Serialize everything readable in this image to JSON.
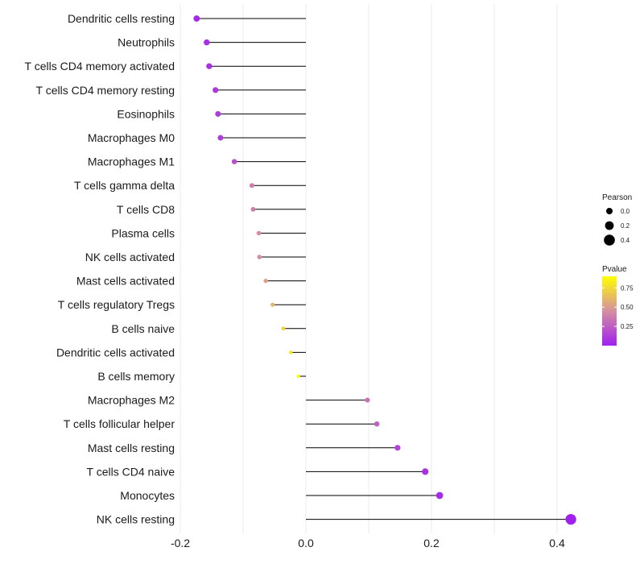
{
  "chart_data": {
    "type": "lollipop",
    "title": "",
    "xlabel": "",
    "ylabel": "",
    "xlim": [
      -0.2,
      0.42
    ],
    "x_ticks": [
      {
        "value": -0.2,
        "label": "-0.2"
      },
      {
        "value": 0.0,
        "label": "0.0"
      },
      {
        "value": 0.2,
        "label": "0.2"
      },
      {
        "value": 0.4,
        "label": "0.4"
      }
    ],
    "grid": true,
    "categories": [
      "Dendritic cells resting",
      "Neutrophils",
      "T cells CD4 memory activated",
      "T cells CD4 memory resting",
      "Eosinophils",
      "Macrophages M0",
      "Macrophages M1",
      "T cells gamma delta",
      "T cells CD8",
      "Plasma cells",
      "NK cells activated",
      "Mast cells activated",
      "T cells regulatory  Tregs",
      "B cells naive",
      "Dendritic cells activated",
      "B cells memory",
      "Macrophages M2",
      "T cells follicular helper",
      "Mast cells resting",
      "T cells CD4 naive",
      "Monocytes",
      "NK cells resting"
    ],
    "pearson": [
      -0.174,
      -0.158,
      -0.154,
      -0.144,
      -0.14,
      -0.136,
      -0.114,
      -0.086,
      -0.084,
      -0.075,
      -0.074,
      -0.064,
      -0.053,
      -0.036,
      -0.024,
      -0.012,
      0.098,
      0.113,
      0.146,
      0.19,
      0.213,
      0.422
    ],
    "pvalue": [
      0.03,
      0.06,
      0.07,
      0.1,
      0.11,
      0.12,
      0.2,
      0.37,
      0.38,
      0.44,
      0.45,
      0.52,
      0.6,
      0.72,
      0.8,
      0.9,
      0.34,
      0.26,
      0.15,
      0.07,
      0.05,
      0.001
    ],
    "legend": {
      "position": "right",
      "size": {
        "title": "Pearson",
        "entries": [
          {
            "value": 0.0,
            "label": "0.0"
          },
          {
            "value": 0.2,
            "label": "0.2"
          },
          {
            "value": 0.4,
            "label": "0.4"
          }
        ]
      },
      "color": {
        "title": "Pvalue",
        "range": [
          0.0,
          0.9
        ],
        "ticks": [
          {
            "value": 0.75,
            "label": "0.75"
          },
          {
            "value": 0.5,
            "label": "0.50"
          },
          {
            "value": 0.25,
            "label": "0.25"
          }
        ],
        "low_color": "#a020f0",
        "mid_color": "#d58fa0",
        "high_color": "#ffff00"
      }
    }
  }
}
